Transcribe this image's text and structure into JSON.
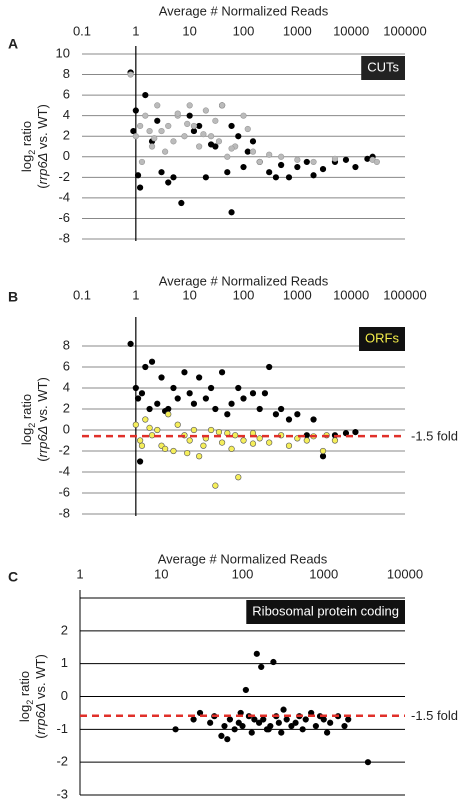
{
  "chart_data": [
    {
      "type": "scatter",
      "panel": "A",
      "title": "Average # Normalized Reads",
      "xlog": true,
      "xlim": [
        0.1,
        100000
      ],
      "xticks": [
        0.1,
        1,
        10,
        100,
        1000,
        10000,
        100000
      ],
      "ylim": [
        -8,
        10
      ],
      "yticks": [
        -8,
        -6,
        -4,
        -2,
        0,
        2,
        4,
        6,
        8,
        10
      ],
      "grid": true,
      "vline": 1,
      "ylabel": {
        "line1": [
          "log",
          "2",
          " ratio"
        ],
        "line2": [
          "(",
          "rrp6Δ",
          " vs. WT)"
        ]
      },
      "annotation": {
        "text": "CUTs",
        "color": "#ffffff",
        "background": "#222222"
      },
      "series": [
        {
          "color": "#000000",
          "edge": "#000000",
          "x": [
            0.8,
            1,
            1.2,
            1.5,
            2,
            3,
            5,
            7,
            10,
            15,
            20,
            30,
            40,
            60,
            80,
            100,
            150,
            200,
            300,
            500,
            700,
            1000,
            1500,
            2000,
            3000,
            5000,
            8000,
            12000,
            20000,
            25000,
            1.1,
            2.5,
            4,
            12,
            25,
            50,
            120,
            400,
            0.9,
            60
          ],
          "values": [
            8.2,
            4.5,
            -3,
            6,
            1.5,
            -1.5,
            -2,
            -4.5,
            4,
            3,
            -2,
            1,
            5,
            -5.4,
            2,
            -1,
            1.5,
            -0.5,
            -1.5,
            -0.8,
            -2,
            -1,
            -0.5,
            -1.8,
            -1.2,
            -0.5,
            -0.3,
            -1,
            -0.2,
            0,
            -1.8,
            3.5,
            -2.5,
            2.5,
            1.2,
            -1.5,
            0.5,
            -2,
            2.5,
            3
          ]
        },
        {
          "color": "#bbbbbb",
          "edge": "#999999",
          "x": [
            0.8,
            1,
            1.2,
            1.5,
            2,
            2.5,
            3,
            4,
            5,
            6,
            8,
            10,
            12,
            15,
            20,
            25,
            30,
            40,
            50,
            70,
            100,
            150,
            200,
            300,
            500,
            1000,
            2000,
            5000,
            25000,
            30000,
            1.3,
            1.8,
            2.2,
            3.5,
            6,
            9,
            18,
            35,
            60,
            120
          ],
          "values": [
            8,
            2,
            3,
            4,
            1,
            5,
            2.5,
            3,
            1.5,
            4,
            2,
            5,
            3,
            1,
            4.5,
            2,
            3.5,
            5,
            0,
            1,
            4,
            0.5,
            -0.5,
            0.2,
            0,
            -0.3,
            -0.5,
            -0.2,
            -0.3,
            -0.5,
            -0.5,
            2.5,
            1.8,
            0.5,
            4.2,
            3.2,
            2.2,
            1.5,
            0.8,
            2.7
          ]
        }
      ]
    },
    {
      "type": "scatter",
      "panel": "B",
      "title": "Average # Normalized Reads",
      "xlog": true,
      "xlim": [
        0.1,
        100000
      ],
      "xticks": [
        0.1,
        1,
        10,
        100,
        1000,
        10000,
        100000
      ],
      "ylim": [
        -8,
        10
      ],
      "yticks": [
        -8,
        -6,
        -4,
        -2,
        0,
        2,
        4,
        6,
        8
      ],
      "grid": true,
      "vline": 1,
      "hline": {
        "value": -0.585,
        "label": "-1.5 fold",
        "color": "#e0302a"
      },
      "ylabel": {
        "line1": [
          "log",
          "2",
          " ratio"
        ],
        "line2": [
          "(",
          "rrp6Δ",
          " vs. WT)"
        ]
      },
      "annotation": {
        "text": "ORFs",
        "color": "#f5ee4a",
        "background": "#111111"
      },
      "series": [
        {
          "color": "#000000",
          "edge": "#000000",
          "x": [
            0.8,
            1,
            1.2,
            1.5,
            2,
            3,
            4,
            5,
            6,
            8,
            10,
            12,
            15,
            20,
            25,
            30,
            40,
            50,
            60,
            80,
            100,
            150,
            200,
            300,
            400,
            500,
            700,
            1000,
            1500,
            2000,
            3000,
            5000,
            8000,
            12000,
            1.1,
            2.5,
            1.3,
            1.8,
            3.5,
            250
          ],
          "values": [
            8.2,
            4,
            -3,
            6,
            6.5,
            5,
            2,
            4,
            3,
            5.5,
            3.5,
            2.5,
            5,
            3,
            4,
            2,
            5.5,
            1.5,
            2.5,
            4,
            3,
            3.5,
            2,
            6,
            1.5,
            2,
            1,
            1.5,
            -0.5,
            1,
            -2.5,
            -0.5,
            -0.3,
            -0.2,
            3,
            2.5,
            3.5,
            2,
            1.8,
            3.5
          ]
        },
        {
          "color": "#f5ee5a",
          "edge": "#555555",
          "x": [
            1,
            1.2,
            1.5,
            2,
            2.5,
            3,
            4,
            5,
            6,
            8,
            10,
            12,
            15,
            20,
            25,
            30,
            40,
            50,
            60,
            70,
            80,
            100,
            150,
            200,
            300,
            500,
            700,
            1000,
            1500,
            2000,
            3000,
            3500,
            5000,
            1.3,
            1.8,
            3.5,
            9,
            18,
            35,
            150
          ],
          "values": [
            0.5,
            -1,
            1,
            -0.5,
            0,
            -1.5,
            1.5,
            -2,
            0.5,
            -0.5,
            -1,
            0,
            -2.5,
            -0.8,
            0,
            -5.3,
            -1.2,
            -0.3,
            -1.8,
            -0.5,
            -4.5,
            -1,
            -0.3,
            -0.8,
            -1.2,
            -0.5,
            -1.5,
            -0.8,
            -1,
            -0.6,
            -2,
            -0.5,
            -1,
            -1.5,
            0.2,
            -1.8,
            -2.2,
            -1.5,
            -0.2,
            -1.3
          ]
        }
      ]
    },
    {
      "type": "scatter",
      "panel": "C",
      "title": "Average # Normalized Reads",
      "xlog": true,
      "xlim": [
        1,
        10000
      ],
      "xticks": [
        1,
        10,
        100,
        1000,
        10000
      ],
      "ylim": [
        -3,
        3
      ],
      "yticks": [
        -3,
        -2,
        -1,
        0,
        1,
        2
      ],
      "grid": true,
      "hline": {
        "value": -0.585,
        "label": "-1.5 fold",
        "color": "#e0302a"
      },
      "ylabel": {
        "line1": [
          "log",
          "2",
          " ratio"
        ],
        "line2": [
          "(",
          "rrp6Δ",
          " vs. WT)"
        ]
      },
      "annotation": {
        "text": "Ribosomal protein coding",
        "color": "#ffffff",
        "background": "#111111"
      },
      "series": [
        {
          "color": "#000000",
          "edge": "#000000",
          "x": [
            15,
            25,
            30,
            40,
            45,
            55,
            60,
            70,
            80,
            90,
            100,
            110,
            120,
            130,
            150,
            160,
            170,
            180,
            200,
            220,
            240,
            260,
            280,
            300,
            350,
            400,
            450,
            500,
            550,
            600,
            700,
            800,
            900,
            1000,
            1100,
            1200,
            1500,
            1800,
            2000,
            3500,
            65,
            95,
            140,
            210,
            320
          ],
          "values": [
            -1,
            -0.7,
            -0.5,
            -0.8,
            -0.6,
            -1.2,
            -0.9,
            -0.7,
            -1,
            -0.8,
            -0.9,
            0.2,
            -0.6,
            -1.1,
            1.3,
            -0.8,
            0.9,
            -0.7,
            -1,
            -0.9,
            1.05,
            -0.6,
            -0.8,
            -1.1,
            -0.7,
            -0.9,
            -0.8,
            -0.6,
            -1,
            -0.7,
            -0.5,
            -0.9,
            -0.6,
            -0.7,
            -1.1,
            -0.8,
            -0.6,
            -0.9,
            -0.7,
            -2,
            -1.3,
            -0.5,
            -0.7,
            -1,
            -0.4
          ]
        }
      ]
    }
  ]
}
